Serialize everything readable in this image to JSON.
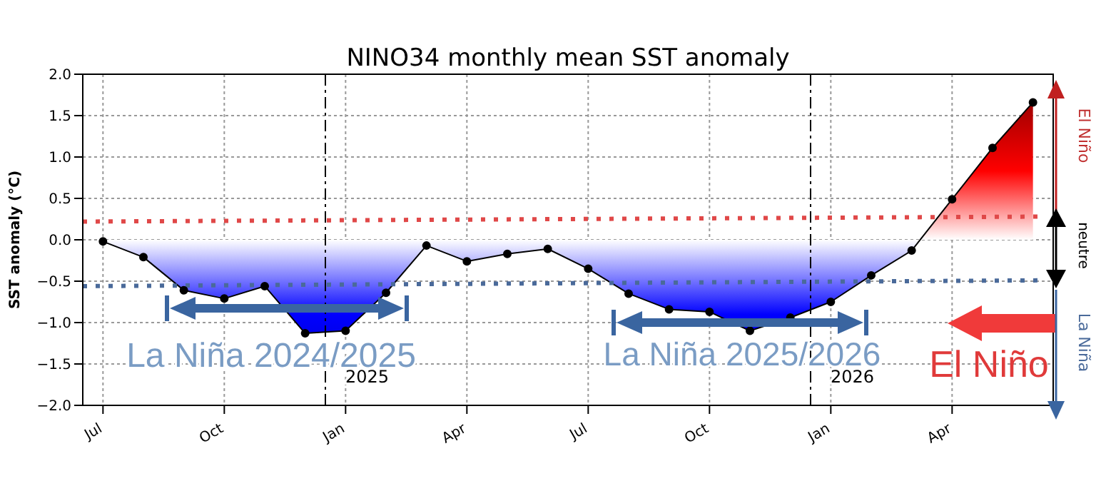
{
  "chart_data": {
    "type": "line",
    "title": "NINO34 monthly mean SST anomaly",
    "ylabel": "SST anomaly (°C)",
    "xlim": [
      "2024-06-16",
      "2026-06-16"
    ],
    "xticks": [
      {
        "value": "2024-07",
        "label": "Jul"
      },
      {
        "value": "2024-10",
        "label": "Oct"
      },
      {
        "value": "2025-01",
        "label": "Jan"
      },
      {
        "value": "2025-04",
        "label": "Apr"
      },
      {
        "value": "2025-07",
        "label": "Jul"
      },
      {
        "value": "2025-10",
        "label": "Oct"
      },
      {
        "value": "2026-01",
        "label": "Jan"
      },
      {
        "value": "2026-04",
        "label": "Apr"
      }
    ],
    "ylim": [
      -2,
      2
    ],
    "yticks": [
      {
        "value": -2,
        "label": "−2.0"
      },
      {
        "value": -1.5,
        "label": "−1.5"
      },
      {
        "value": -1,
        "label": "−1.0"
      },
      {
        "value": -0.5,
        "label": "−0.5"
      },
      {
        "value": 0,
        "label": "0.0"
      },
      {
        "value": 0.5,
        "label": "0.5"
      },
      {
        "value": 1,
        "label": "1.0"
      },
      {
        "value": 1.5,
        "label": "1.5"
      },
      {
        "value": 2,
        "label": "2.0"
      }
    ],
    "grid": true,
    "series": [
      {
        "type": "area",
        "color": "#000000",
        "marker": "circle",
        "line_style": "solid",
        "x": [
          "2024-07",
          "2024-08",
          "2024-09",
          "2024-10",
          "2024-11",
          "2024-12",
          "2025-01",
          "2025-02",
          "2025-03",
          "2025-04",
          "2025-05",
          "2025-06",
          "2025-07",
          "2025-08",
          "2025-09",
          "2025-10",
          "2025-11",
          "2025-12",
          "2026-01",
          "2026-02",
          "2026-03",
          "2026-04",
          "2026-05",
          "2026-06"
        ],
        "values": [
          -0.02,
          -0.21,
          -0.61,
          -0.71,
          -0.56,
          -1.13,
          -1.1,
          -0.64,
          -0.07,
          -0.26,
          -0.17,
          -0.11,
          -0.35,
          -0.65,
          -0.84,
          -0.87,
          -1.1,
          -0.94,
          -0.75,
          -0.43,
          -0.13,
          0.49,
          1.11,
          1.66
        ]
      },
      {
        "color": "#e04848",
        "marker": "none",
        "line_style": "dotted",
        "x": [
          "2024-06-16",
          "2026-06-05"
        ],
        "values": [
          0.22,
          0.28
        ]
      },
      {
        "color": "#4a6a9a",
        "marker": "none",
        "line_style": "dotted",
        "x": [
          "2024-06-16",
          "2026-06-05"
        ],
        "values": [
          -0.56,
          -0.49
        ]
      }
    ],
    "ref_lines": [
      {
        "axis": "x",
        "value": "2024-12-16",
        "label": "2025",
        "color": "#000000",
        "line_style": "dashdot"
      },
      {
        "axis": "x",
        "value": "2025-12-16",
        "label": "2026",
        "color": "#000000",
        "line_style": "dashdot"
      }
    ],
    "annotations": [
      "La Niña 2024/2025",
      "La Niña 2025/2026",
      "El Niño",
      "El Niño",
      "neutre",
      "La Niña"
    ]
  }
}
